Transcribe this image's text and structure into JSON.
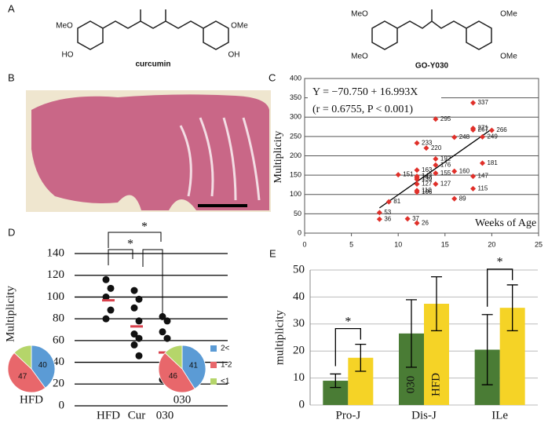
{
  "panel_labels": [
    "A",
    "B",
    "C",
    "D",
    "E"
  ],
  "structures": [
    {
      "name": "curcumin",
      "groups": [
        "MeO",
        "HO",
        "OMe",
        "OH"
      ]
    },
    {
      "name": "GO-Y030",
      "groups": [
        "MeO",
        "MeO",
        "OMe",
        "OMe"
      ]
    }
  ],
  "chart_data": [
    {
      "type": "scatter",
      "ylabel": "Multiplicity",
      "color": "#e0302a",
      "x": [
        18,
        14,
        18,
        18,
        20,
        19,
        16,
        12,
        13,
        14,
        19,
        14,
        12,
        16,
        14,
        10,
        12,
        18,
        12,
        12,
        12,
        14,
        12,
        18,
        12,
        16,
        9,
        8,
        8,
        11,
        12
      ],
      "values": [
        337,
        295,
        271,
        267,
        266,
        249,
        248,
        233,
        220,
        192,
        181,
        176,
        163,
        160,
        155,
        151,
        147,
        147,
        143,
        139,
        127,
        127,
        110,
        115,
        106,
        89,
        81,
        53,
        36,
        37,
        26
      ],
      "fit": {
        "intercept": -70.75,
        "slope": 16.993
      },
      "annotations": [
        "Y = −70.750 + 16.993X",
        "(r = 0.6755, P < 0.001)",
        "Weeks of Age"
      ],
      "xlim": [
        0,
        25
      ],
      "xticks": [
        0,
        5,
        10,
        15,
        20,
        25
      ],
      "ylim": [
        0,
        400
      ],
      "yticks": [
        0,
        50,
        100,
        150,
        200,
        250,
        300,
        350,
        400
      ],
      "grid": true
    },
    {
      "type": "dot",
      "ylabel": "Multiplicity",
      "categories": [
        "HFD",
        "Cur",
        "030"
      ],
      "points": [
        [
          116,
          108,
          100,
          88,
          80
        ],
        [
          106,
          98,
          90,
          78,
          66,
          62,
          56,
          46
        ],
        [
          82,
          78,
          68,
          62,
          32,
          28,
          24
        ]
      ],
      "means": [
        97,
        73,
        49
      ],
      "color": "#111111",
      "mean_color": "#d9414c",
      "annotations": [
        "*",
        "*"
      ],
      "ylim": [
        0,
        140
      ],
      "yticks": [
        0,
        20,
        40,
        60,
        80,
        100,
        120,
        140
      ],
      "grid": true
    },
    {
      "type": "pie",
      "title": "HFD",
      "categories": [
        "2<",
        "1-2",
        "<1"
      ],
      "values": [
        40,
        47,
        13
      ],
      "value_labels": [
        "40",
        "47",
        null
      ],
      "colors": [
        "#5b9bd5",
        "#e8676b",
        "#b5d56a"
      ]
    },
    {
      "type": "pie",
      "title": "030",
      "values": [
        41,
        46,
        13
      ],
      "value_labels": [
        "41",
        "46",
        null
      ],
      "colors": [
        "#5b9bd5",
        "#e8676b",
        "#b5d56a"
      ]
    },
    {
      "type": "bar",
      "ylabel": "multiplicity",
      "categories": [
        "Pro-J",
        "Dis-J",
        "ILe"
      ],
      "series": [
        {
          "name": "030",
          "color": "#4a7c35",
          "values": [
            9,
            26.5,
            20.5
          ],
          "errors": [
            2.5,
            12.5,
            13
          ]
        },
        {
          "name": "HFD",
          "color": "#f5d326",
          "values": [
            17.5,
            37.5,
            36
          ],
          "errors": [
            5,
            10,
            8.5
          ]
        }
      ],
      "annotations": [
        "*",
        "*"
      ],
      "ylim": [
        0,
        50
      ],
      "yticks": [
        0,
        10,
        20,
        30,
        40,
        50
      ],
      "grid": true
    }
  ]
}
